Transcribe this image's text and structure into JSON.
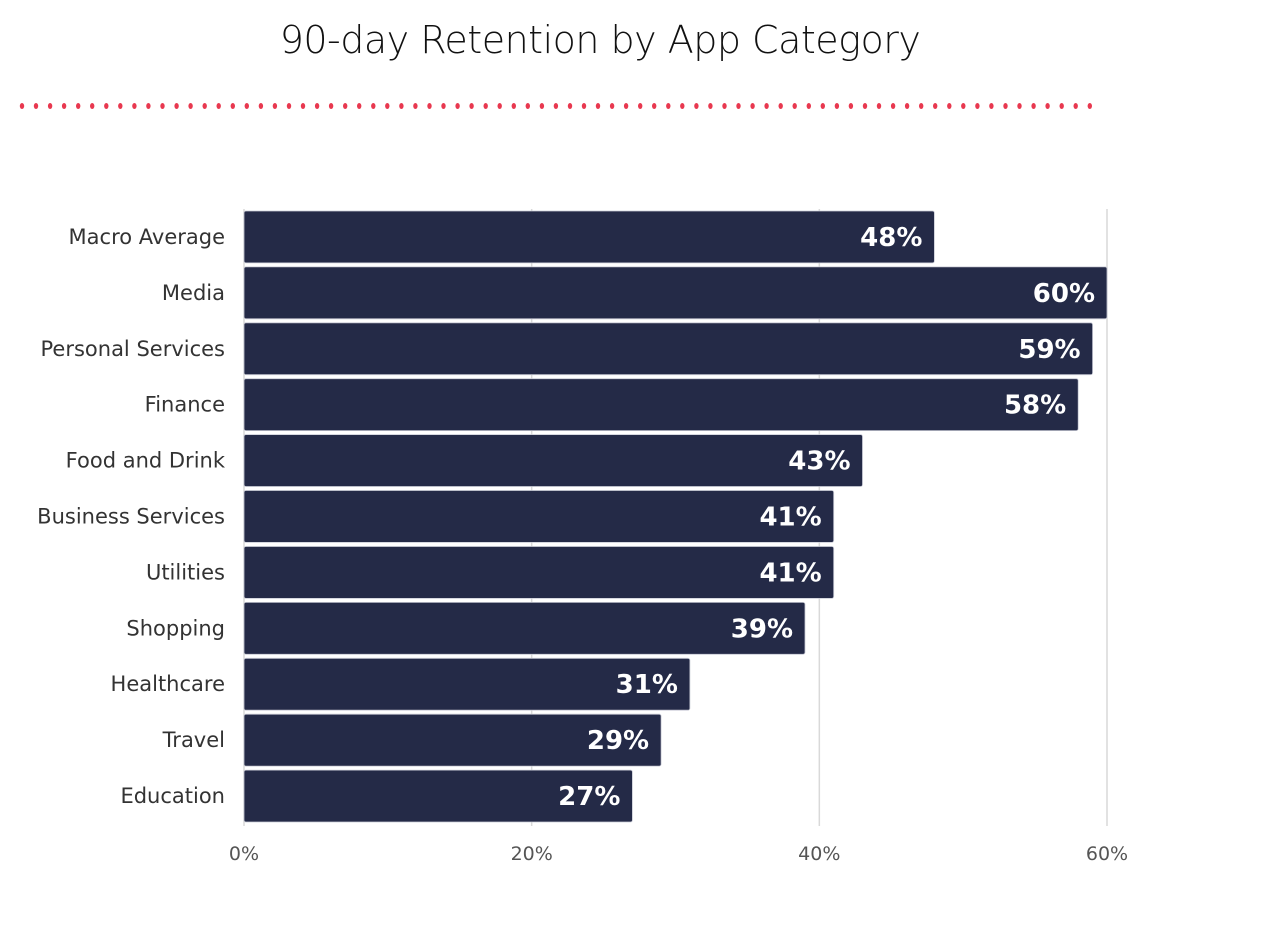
{
  "colors": {
    "bar": "#242a47",
    "divider_dots": "#e8384f",
    "gridline": "#d9d9d9",
    "title": "#111111"
  },
  "chart_data": {
    "type": "bar",
    "orientation": "horizontal",
    "title": "90-day Retention by App Category",
    "xlabel": "",
    "ylabel": "",
    "categories": [
      "Macro Average",
      "Media",
      "Personal Services",
      "Finance",
      "Food and Drink",
      "Business Services",
      "Utilities",
      "Shopping",
      "Healthcare",
      "Travel",
      "Education"
    ],
    "values": [
      48,
      60,
      59,
      58,
      43,
      41,
      41,
      39,
      31,
      29,
      27
    ],
    "value_labels": [
      "48%",
      "60%",
      "59%",
      "58%",
      "43%",
      "41%",
      "41%",
      "39%",
      "31%",
      "29%",
      "27%"
    ],
    "xlim": [
      0,
      60
    ],
    "x_ticks": [
      0,
      20,
      40,
      60
    ],
    "x_tick_labels": [
      "0%",
      "20%",
      "40%",
      "60%"
    ],
    "grid": true,
    "legend": "none"
  }
}
